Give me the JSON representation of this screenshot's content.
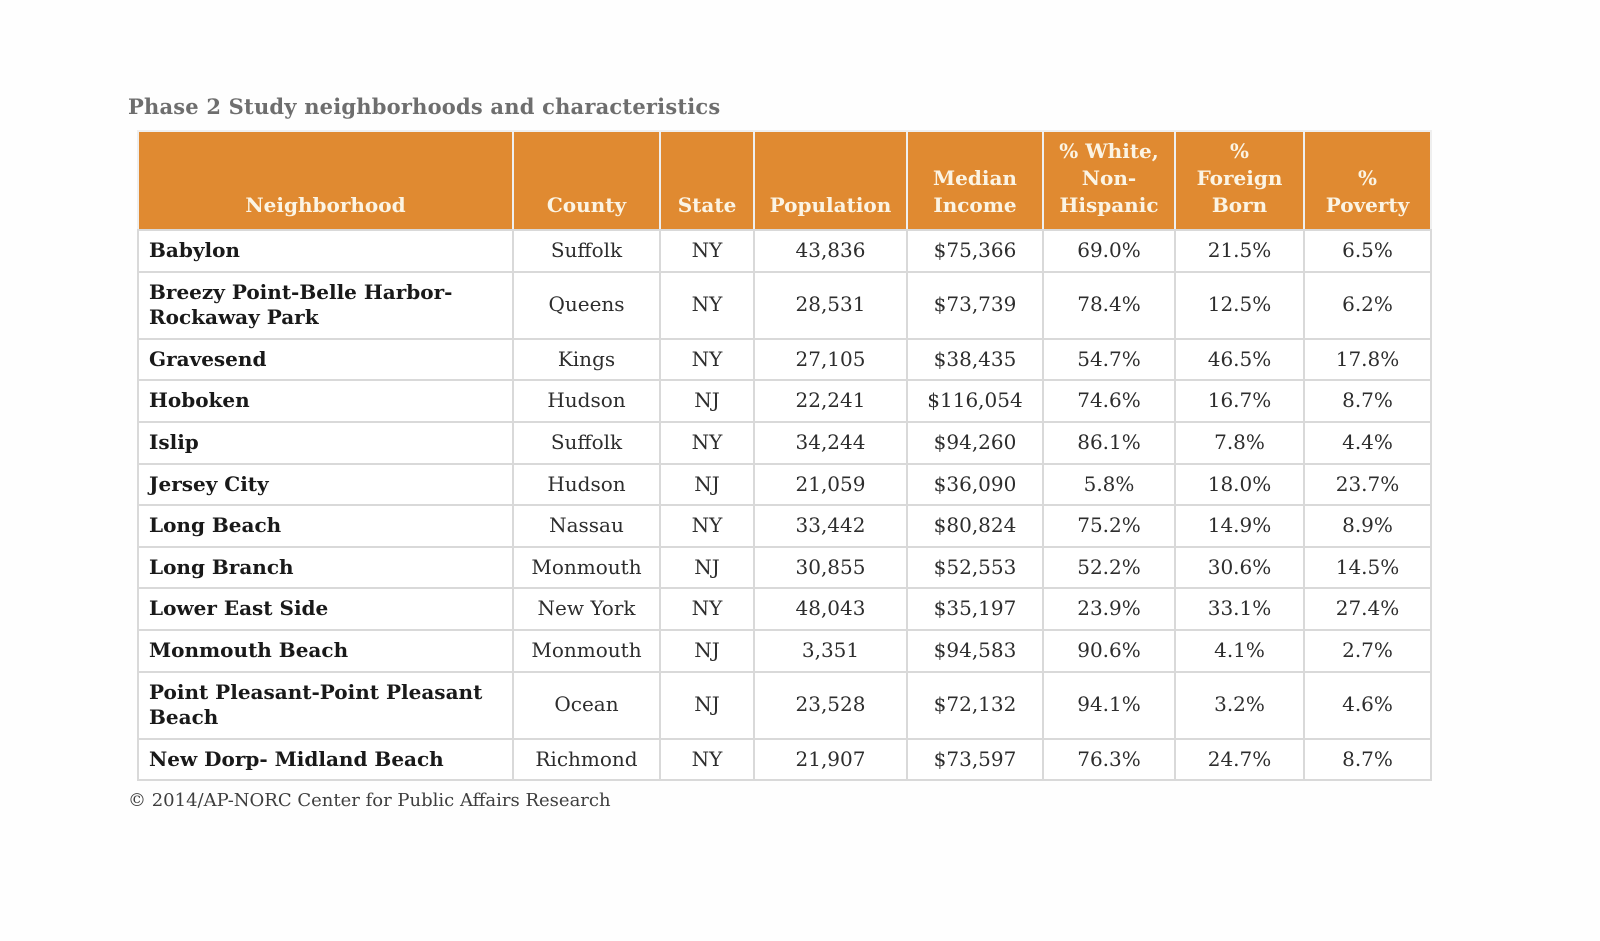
{
  "page": {
    "title": "Phase 2 Study neighborhoods and characteristics",
    "footer": "© 2014/AP-NORC Center for Public Affairs Research"
  },
  "colors": {
    "header_bg": "#e08a31",
    "header_text": "#fbf4e4",
    "title_text": "#6e6e6e",
    "body_text": "#2d2d2d",
    "cell_border": "#d9d9d9"
  },
  "table": {
    "columns": [
      {
        "key": "neighborhood",
        "label": "Neighborhood"
      },
      {
        "key": "county",
        "label": "County"
      },
      {
        "key": "state",
        "label": "State"
      },
      {
        "key": "population",
        "label": "Population"
      },
      {
        "key": "median_income",
        "label": "Median\nIncome"
      },
      {
        "key": "pct_white_non_hispanic",
        "label": "% White,\nNon-\nHispanic"
      },
      {
        "key": "pct_foreign_born",
        "label": "%\nForeign\nBorn"
      },
      {
        "key": "pct_poverty",
        "label": "%\nPoverty"
      }
    ],
    "rows": [
      {
        "neighborhood": "Babylon",
        "county": "Suffolk",
        "state": "NY",
        "population": "43,836",
        "median_income": "$75,366",
        "pct_white_non_hispanic": "69.0%",
        "pct_foreign_born": "21.5%",
        "pct_poverty": "6.5%"
      },
      {
        "neighborhood": "Breezy Point-Belle Harbor-Rockaway Park",
        "county": "Queens",
        "state": "NY",
        "population": "28,531",
        "median_income": "$73,739",
        "pct_white_non_hispanic": "78.4%",
        "pct_foreign_born": "12.5%",
        "pct_poverty": "6.2%"
      },
      {
        "neighborhood": "Gravesend",
        "county": "Kings",
        "state": "NY",
        "population": "27,105",
        "median_income": "$38,435",
        "pct_white_non_hispanic": "54.7%",
        "pct_foreign_born": "46.5%",
        "pct_poverty": "17.8%"
      },
      {
        "neighborhood": "Hoboken",
        "county": "Hudson",
        "state": "NJ",
        "population": "22,241",
        "median_income": "$116,054",
        "pct_white_non_hispanic": "74.6%",
        "pct_foreign_born": "16.7%",
        "pct_poverty": "8.7%"
      },
      {
        "neighborhood": "Islip",
        "county": "Suffolk",
        "state": "NY",
        "population": "34,244",
        "median_income": "$94,260",
        "pct_white_non_hispanic": "86.1%",
        "pct_foreign_born": "7.8%",
        "pct_poverty": "4.4%"
      },
      {
        "neighborhood": "Jersey City",
        "county": "Hudson",
        "state": "NJ",
        "population": "21,059",
        "median_income": "$36,090",
        "pct_white_non_hispanic": "5.8%",
        "pct_foreign_born": "18.0%",
        "pct_poverty": "23.7%"
      },
      {
        "neighborhood": "Long Beach",
        "county": "Nassau",
        "state": "NY",
        "population": "33,442",
        "median_income": "$80,824",
        "pct_white_non_hispanic": "75.2%",
        "pct_foreign_born": "14.9%",
        "pct_poverty": "8.9%"
      },
      {
        "neighborhood": "Long Branch",
        "county": "Monmouth",
        "state": "NJ",
        "population": "30,855",
        "median_income": "$52,553",
        "pct_white_non_hispanic": "52.2%",
        "pct_foreign_born": "30.6%",
        "pct_poverty": "14.5%"
      },
      {
        "neighborhood": "Lower East Side",
        "county": "New York",
        "state": "NY",
        "population": "48,043",
        "median_income": "$35,197",
        "pct_white_non_hispanic": "23.9%",
        "pct_foreign_born": "33.1%",
        "pct_poverty": "27.4%"
      },
      {
        "neighborhood": "Monmouth Beach",
        "county": "Monmouth",
        "state": "NJ",
        "population": "3,351",
        "median_income": "$94,583",
        "pct_white_non_hispanic": "90.6%",
        "pct_foreign_born": "4.1%",
        "pct_poverty": "2.7%"
      },
      {
        "neighborhood": "Point Pleasant-Point Pleasant Beach",
        "county": "Ocean",
        "state": "NJ",
        "population": "23,528",
        "median_income": "$72,132",
        "pct_white_non_hispanic": "94.1%",
        "pct_foreign_born": "3.2%",
        "pct_poverty": "4.6%"
      },
      {
        "neighborhood": "New Dorp- Midland Beach",
        "county": "Richmond",
        "state": "NY",
        "population": "21,907",
        "median_income": "$73,597",
        "pct_white_non_hispanic": "76.3%",
        "pct_foreign_born": "24.7%",
        "pct_poverty": "8.7%"
      }
    ]
  },
  "chart_data": {
    "type": "table",
    "title": "Phase 2 Study neighborhoods and characteristics",
    "source": "© 2014/AP-NORC Center for Public Affairs Research",
    "columns": [
      "Neighborhood",
      "County",
      "State",
      "Population",
      "Median Income",
      "% White, Non-Hispanic",
      "% Foreign Born",
      "% Poverty"
    ],
    "rows": [
      [
        "Babylon",
        "Suffolk",
        "NY",
        43836,
        75366,
        69.0,
        21.5,
        6.5
      ],
      [
        "Breezy Point-Belle Harbor-Rockaway Park",
        "Queens",
        "NY",
        28531,
        73739,
        78.4,
        12.5,
        6.2
      ],
      [
        "Gravesend",
        "Kings",
        "NY",
        27105,
        38435,
        54.7,
        46.5,
        17.8
      ],
      [
        "Hoboken",
        "Hudson",
        "NJ",
        22241,
        116054,
        74.6,
        16.7,
        8.7
      ],
      [
        "Islip",
        "Suffolk",
        "NY",
        34244,
        94260,
        86.1,
        7.8,
        4.4
      ],
      [
        "Jersey City",
        "Hudson",
        "NJ",
        21059,
        36090,
        5.8,
        18.0,
        23.7
      ],
      [
        "Long Beach",
        "Nassau",
        "NY",
        33442,
        80824,
        75.2,
        14.9,
        8.9
      ],
      [
        "Long Branch",
        "Monmouth",
        "NJ",
        30855,
        52553,
        52.2,
        30.6,
        14.5
      ],
      [
        "Lower East Side",
        "New York",
        "NY",
        48043,
        35197,
        23.9,
        33.1,
        27.4
      ],
      [
        "Monmouth Beach",
        "Monmouth",
        "NJ",
        3351,
        94583,
        90.6,
        4.1,
        2.7
      ],
      [
        "Point Pleasant-Point Pleasant Beach",
        "Ocean",
        "NJ",
        23528,
        72132,
        94.1,
        3.2,
        4.6
      ],
      [
        "New Dorp- Midland Beach",
        "Richmond",
        "NY",
        21907,
        73597,
        76.3,
        24.7,
        8.7
      ]
    ]
  }
}
